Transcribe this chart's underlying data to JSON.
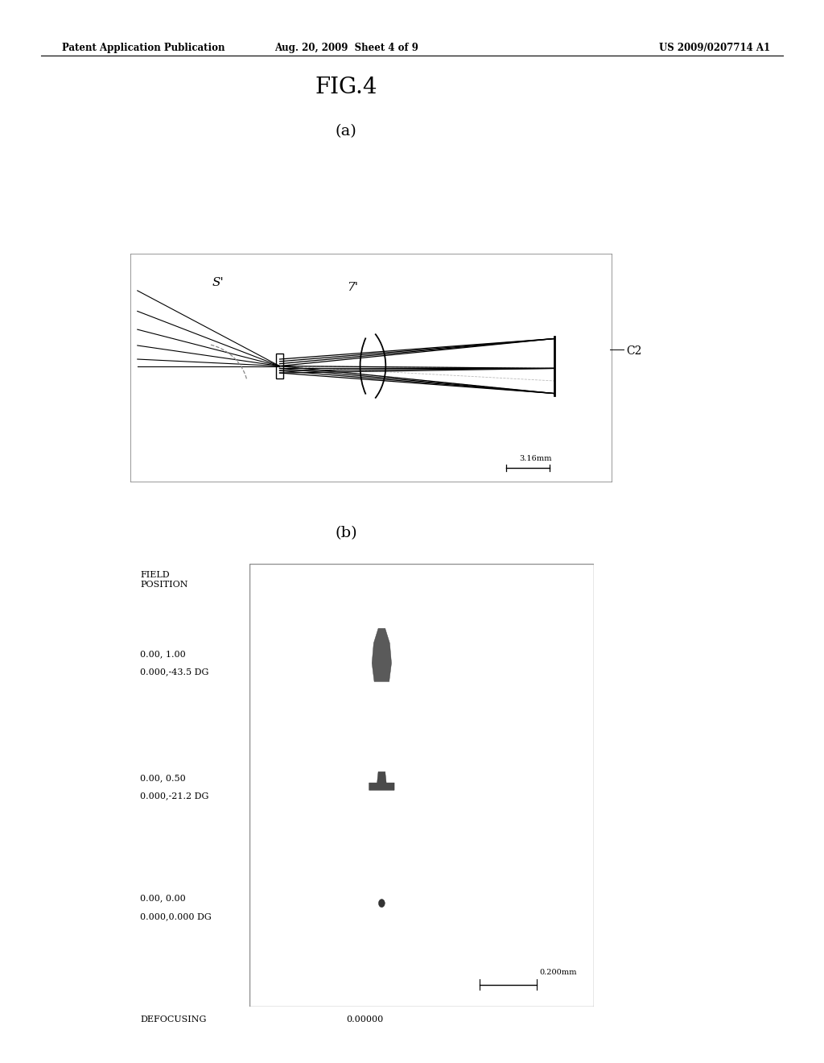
{
  "page_bg": "#ffffff",
  "header_left": "Patent Application Publication",
  "header_mid": "Aug. 20, 2009  Sheet 4 of 9",
  "header_right": "US 2009/0207714 A1",
  "fig_title": "FIG.4",
  "sub_a": "(a)",
  "sub_b": "(b)",
  "scale_a": "3.16mm",
  "scale_b": "0.200mm",
  "label_S": "S'",
  "label_7": "7'",
  "label_C2": "C2",
  "field_pos_label": "FIELD\nPOSITION",
  "defocusing_label": "DEFOCUSING",
  "defocusing_val": "0.00000",
  "row1_l1": "0.00, 1.00",
  "row1_l2": "0.000,-43.5 DG",
  "row2_l1": "0.00, 0.50",
  "row2_l2": "0.000,-21.2 DG",
  "row3_l1": "0.00, 0.00",
  "row3_l2": "0.000,0.000 DG"
}
